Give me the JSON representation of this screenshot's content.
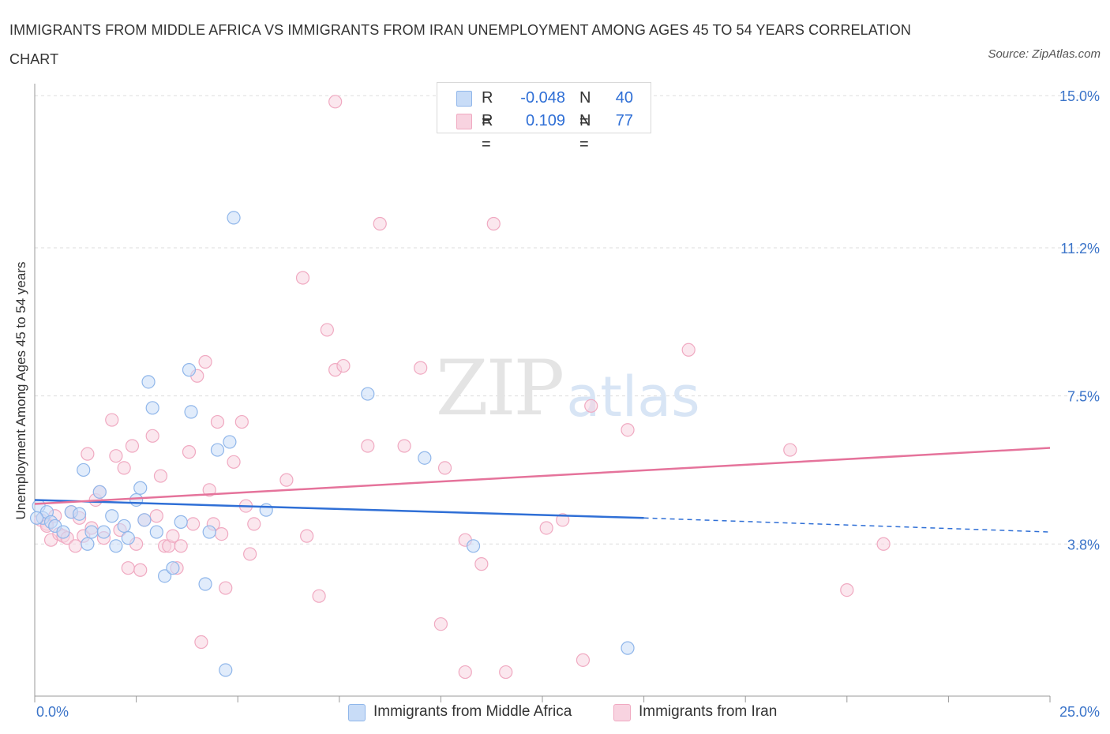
{
  "title": "IMMIGRANTS FROM MIDDLE AFRICA VS IMMIGRANTS FROM IRAN UNEMPLOYMENT AMONG AGES 45 TO 54 YEARS CORRELATION CHART",
  "source": "Source: ZipAtlas.com",
  "watermark": {
    "zip": "ZIP",
    "atlas": "atlas"
  },
  "legend": {
    "r_label": "R =",
    "n_label": "N =",
    "rows": [
      {
        "r": "-0.048",
        "n": "40"
      },
      {
        "r": "0.109",
        "n": "77"
      }
    ]
  },
  "chart_data": {
    "type": "scatter",
    "title": "IMMIGRANTS FROM MIDDLE AFRICA VS IMMIGRANTS FROM IRAN UNEMPLOYMENT AMONG AGES 45 TO 54 YEARS CORRELATION CHART",
    "xlabel": "",
    "ylabel": "Unemployment Among Ages 45 to 54 years",
    "xlim": [
      0,
      25
    ],
    "ylim": [
      0,
      15.3
    ],
    "x_tick_labels": [
      {
        "value": 0,
        "label": "0.0%"
      },
      {
        "value": 25,
        "label": "25.0%"
      }
    ],
    "y_tick_labels": [
      {
        "value": 3.8,
        "label": "3.8%"
      },
      {
        "value": 7.5,
        "label": "7.5%"
      },
      {
        "value": 11.2,
        "label": "11.2%"
      },
      {
        "value": 15.0,
        "label": "15.0%"
      }
    ],
    "grid": true,
    "series": [
      {
        "name": "Immigrants from Middle Africa",
        "color": "#8fb6ea",
        "fill": "#c8dcf7",
        "line_color": "#2f6fd6",
        "r": -0.048,
        "n": 40,
        "trend": {
          "x0": 0,
          "y0": 4.9,
          "x1": 15,
          "y1": 4.45,
          "dash_to_x": 25,
          "dash_to_y": 4.1
        },
        "points": [
          [
            0.1,
            4.75
          ],
          [
            0.2,
            4.45
          ],
          [
            0.3,
            4.6
          ],
          [
            0.4,
            4.35
          ],
          [
            0.5,
            4.25
          ],
          [
            0.7,
            4.1
          ],
          [
            0.9,
            4.6
          ],
          [
            1.1,
            4.55
          ],
          [
            1.2,
            5.65
          ],
          [
            1.3,
            3.8
          ],
          [
            1.4,
            4.1
          ],
          [
            1.6,
            5.1
          ],
          [
            1.7,
            4.1
          ],
          [
            1.9,
            4.5
          ],
          [
            2.0,
            3.75
          ],
          [
            2.2,
            4.25
          ],
          [
            2.3,
            3.95
          ],
          [
            2.5,
            4.9
          ],
          [
            2.6,
            5.2
          ],
          [
            2.7,
            4.4
          ],
          [
            2.8,
            7.85
          ],
          [
            2.9,
            7.2
          ],
          [
            3.0,
            4.1
          ],
          [
            3.2,
            3.0
          ],
          [
            3.4,
            3.2
          ],
          [
            3.6,
            4.35
          ],
          [
            3.8,
            8.15
          ],
          [
            3.85,
            7.1
          ],
          [
            4.2,
            2.8
          ],
          [
            4.3,
            4.1
          ],
          [
            4.5,
            6.15
          ],
          [
            4.8,
            6.35
          ],
          [
            4.7,
            0.65
          ],
          [
            4.9,
            11.95
          ],
          [
            5.7,
            4.65
          ],
          [
            8.2,
            7.55
          ],
          [
            9.6,
            5.95
          ],
          [
            10.8,
            3.75
          ],
          [
            14.6,
            1.2
          ],
          [
            0.05,
            4.45
          ]
        ]
      },
      {
        "name": "Immigrants from Iran",
        "color": "#f0a9c1",
        "fill": "#f8d3e0",
        "line_color": "#e5739b",
        "r": 0.109,
        "n": 77,
        "trend": {
          "x0": 0,
          "y0": 4.8,
          "x1": 25,
          "y1": 6.2
        },
        "points": [
          [
            0.15,
            4.4
          ],
          [
            0.3,
            4.3
          ],
          [
            0.4,
            3.9
          ],
          [
            0.5,
            4.5
          ],
          [
            0.6,
            4.05
          ],
          [
            0.7,
            4.0
          ],
          [
            0.8,
            3.95
          ],
          [
            0.9,
            4.6
          ],
          [
            1.0,
            3.75
          ],
          [
            1.1,
            4.45
          ],
          [
            1.2,
            4.0
          ],
          [
            1.3,
            6.05
          ],
          [
            1.4,
            4.2
          ],
          [
            1.5,
            4.9
          ],
          [
            1.6,
            5.1
          ],
          [
            1.7,
            3.95
          ],
          [
            1.9,
            6.9
          ],
          [
            2.0,
            6.0
          ],
          [
            2.1,
            4.15
          ],
          [
            2.2,
            5.7
          ],
          [
            2.3,
            3.2
          ],
          [
            2.4,
            6.25
          ],
          [
            2.5,
            3.8
          ],
          [
            2.6,
            3.15
          ],
          [
            2.7,
            4.4
          ],
          [
            2.9,
            6.5
          ],
          [
            3.0,
            4.5
          ],
          [
            3.1,
            5.5
          ],
          [
            3.2,
            3.75
          ],
          [
            3.3,
            3.75
          ],
          [
            3.4,
            4.0
          ],
          [
            3.5,
            3.2
          ],
          [
            3.6,
            3.75
          ],
          [
            3.8,
            6.1
          ],
          [
            3.9,
            4.3
          ],
          [
            4.0,
            8.0
          ],
          [
            4.1,
            1.35
          ],
          [
            4.2,
            8.35
          ],
          [
            4.3,
            5.15
          ],
          [
            4.4,
            4.3
          ],
          [
            4.5,
            6.85
          ],
          [
            4.6,
            4.05
          ],
          [
            4.7,
            2.7
          ],
          [
            4.9,
            5.85
          ],
          [
            5.1,
            6.85
          ],
          [
            5.2,
            4.75
          ],
          [
            5.3,
            3.55
          ],
          [
            5.4,
            4.3
          ],
          [
            6.2,
            5.4
          ],
          [
            6.6,
            10.45
          ],
          [
            6.7,
            4.0
          ],
          [
            7.0,
            2.5
          ],
          [
            7.2,
            9.15
          ],
          [
            7.4,
            8.15
          ],
          [
            7.6,
            8.25
          ],
          [
            7.4,
            14.85
          ],
          [
            8.2,
            6.25
          ],
          [
            8.5,
            11.8
          ],
          [
            9.1,
            6.25
          ],
          [
            9.5,
            8.2
          ],
          [
            10.0,
            1.8
          ],
          [
            10.1,
            5.7
          ],
          [
            10.6,
            3.9
          ],
          [
            10.6,
            0.6
          ],
          [
            11.0,
            3.3
          ],
          [
            11.3,
            11.8
          ],
          [
            11.6,
            0.6
          ],
          [
            12.6,
            4.2
          ],
          [
            13.0,
            4.4
          ],
          [
            13.5,
            0.9
          ],
          [
            13.7,
            7.25
          ],
          [
            14.6,
            6.65
          ],
          [
            16.1,
            8.65
          ],
          [
            18.6,
            6.15
          ],
          [
            20.0,
            2.65
          ],
          [
            20.9,
            3.8
          ],
          [
            0.3,
            4.25
          ]
        ]
      }
    ]
  }
}
